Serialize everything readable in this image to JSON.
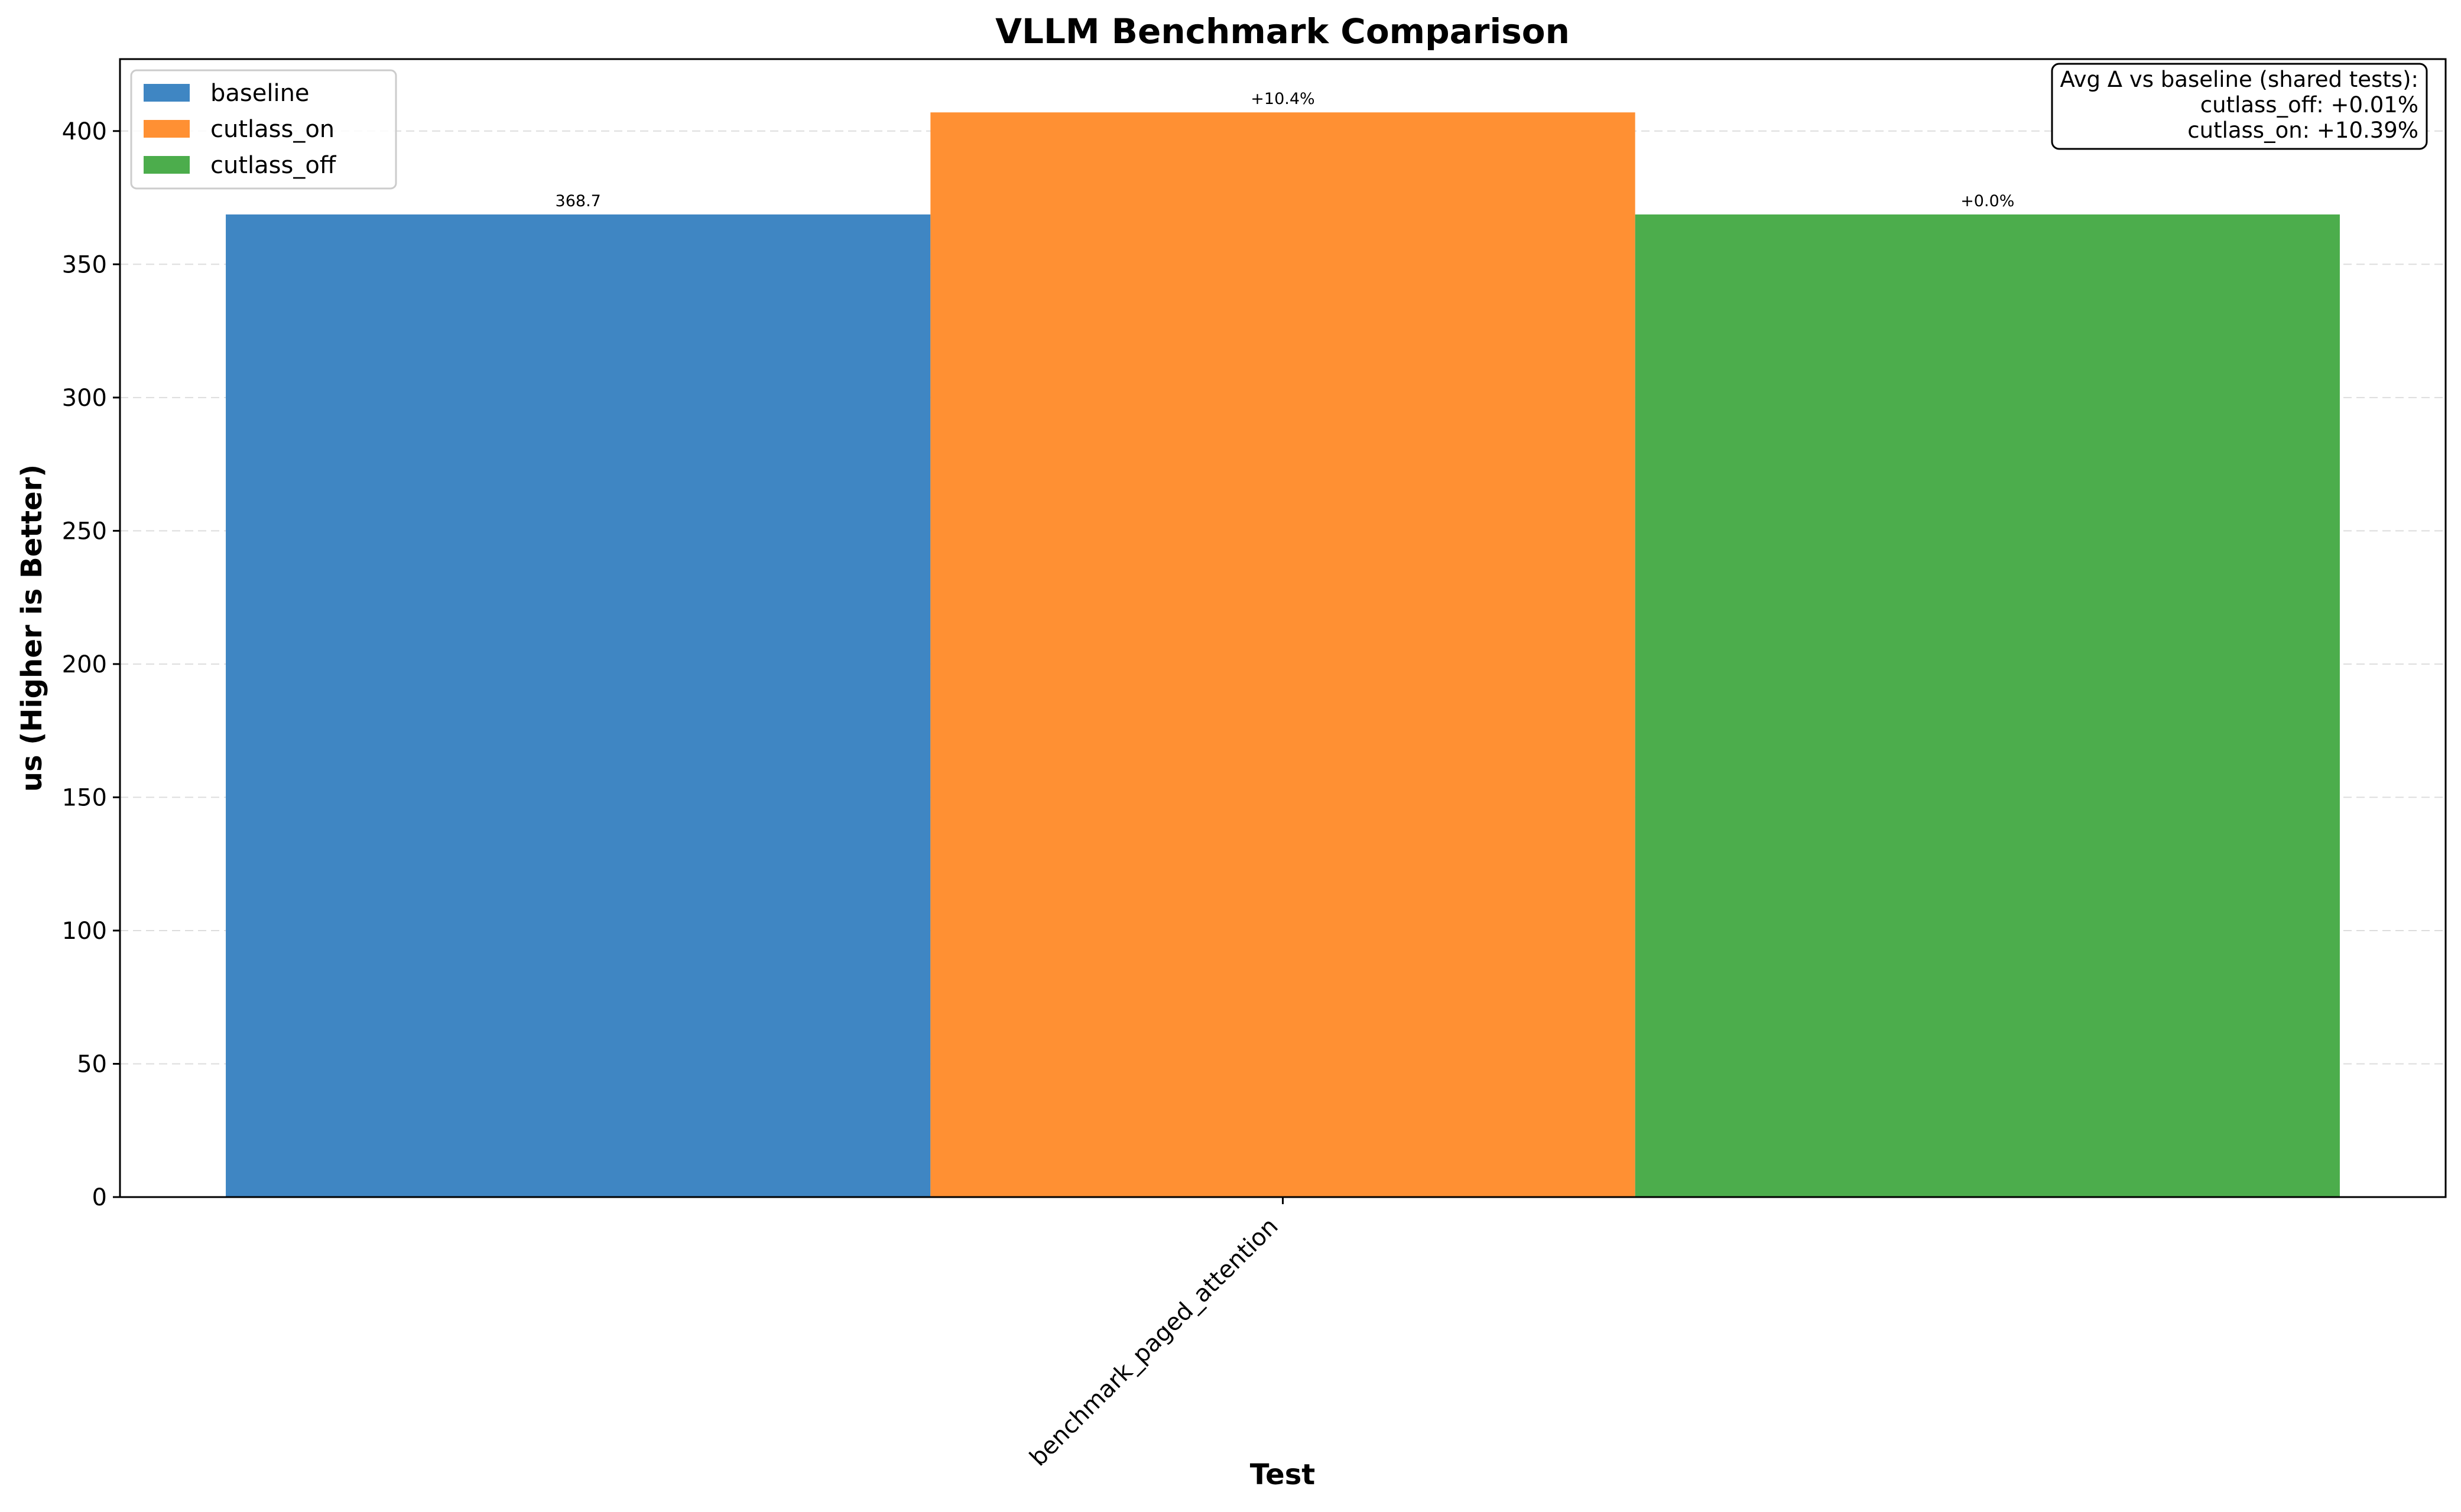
{
  "chart_data": {
    "type": "bar",
    "title": "VLLM Benchmark Comparison",
    "xlabel": "Test",
    "ylabel": "us (Higher is Better)",
    "categories": [
      "benchmark_paged_attention"
    ],
    "series": [
      {
        "name": "baseline",
        "values": [
          368.7
        ],
        "color": "#3f86c3",
        "data_label": "368.7"
      },
      {
        "name": "cutlass_on",
        "values": [
          407.0
        ],
        "color": "#ff9033",
        "data_label": "+10.4%"
      },
      {
        "name": "cutlass_off",
        "values": [
          368.7
        ],
        "color": "#4cad4c",
        "data_label": "+0.0%"
      }
    ],
    "ylim": [
      0,
      427
    ],
    "yticks": [
      0,
      50,
      100,
      150,
      200,
      250,
      300,
      350,
      400
    ],
    "grid": "horizontal dashed",
    "legend_position": "top-left",
    "annotation": {
      "position": "top-right",
      "lines": [
        "Avg Δ vs baseline (shared tests):",
        "cutlass_off: +0.01%",
        "cutlass_on: +10.39%"
      ]
    }
  }
}
